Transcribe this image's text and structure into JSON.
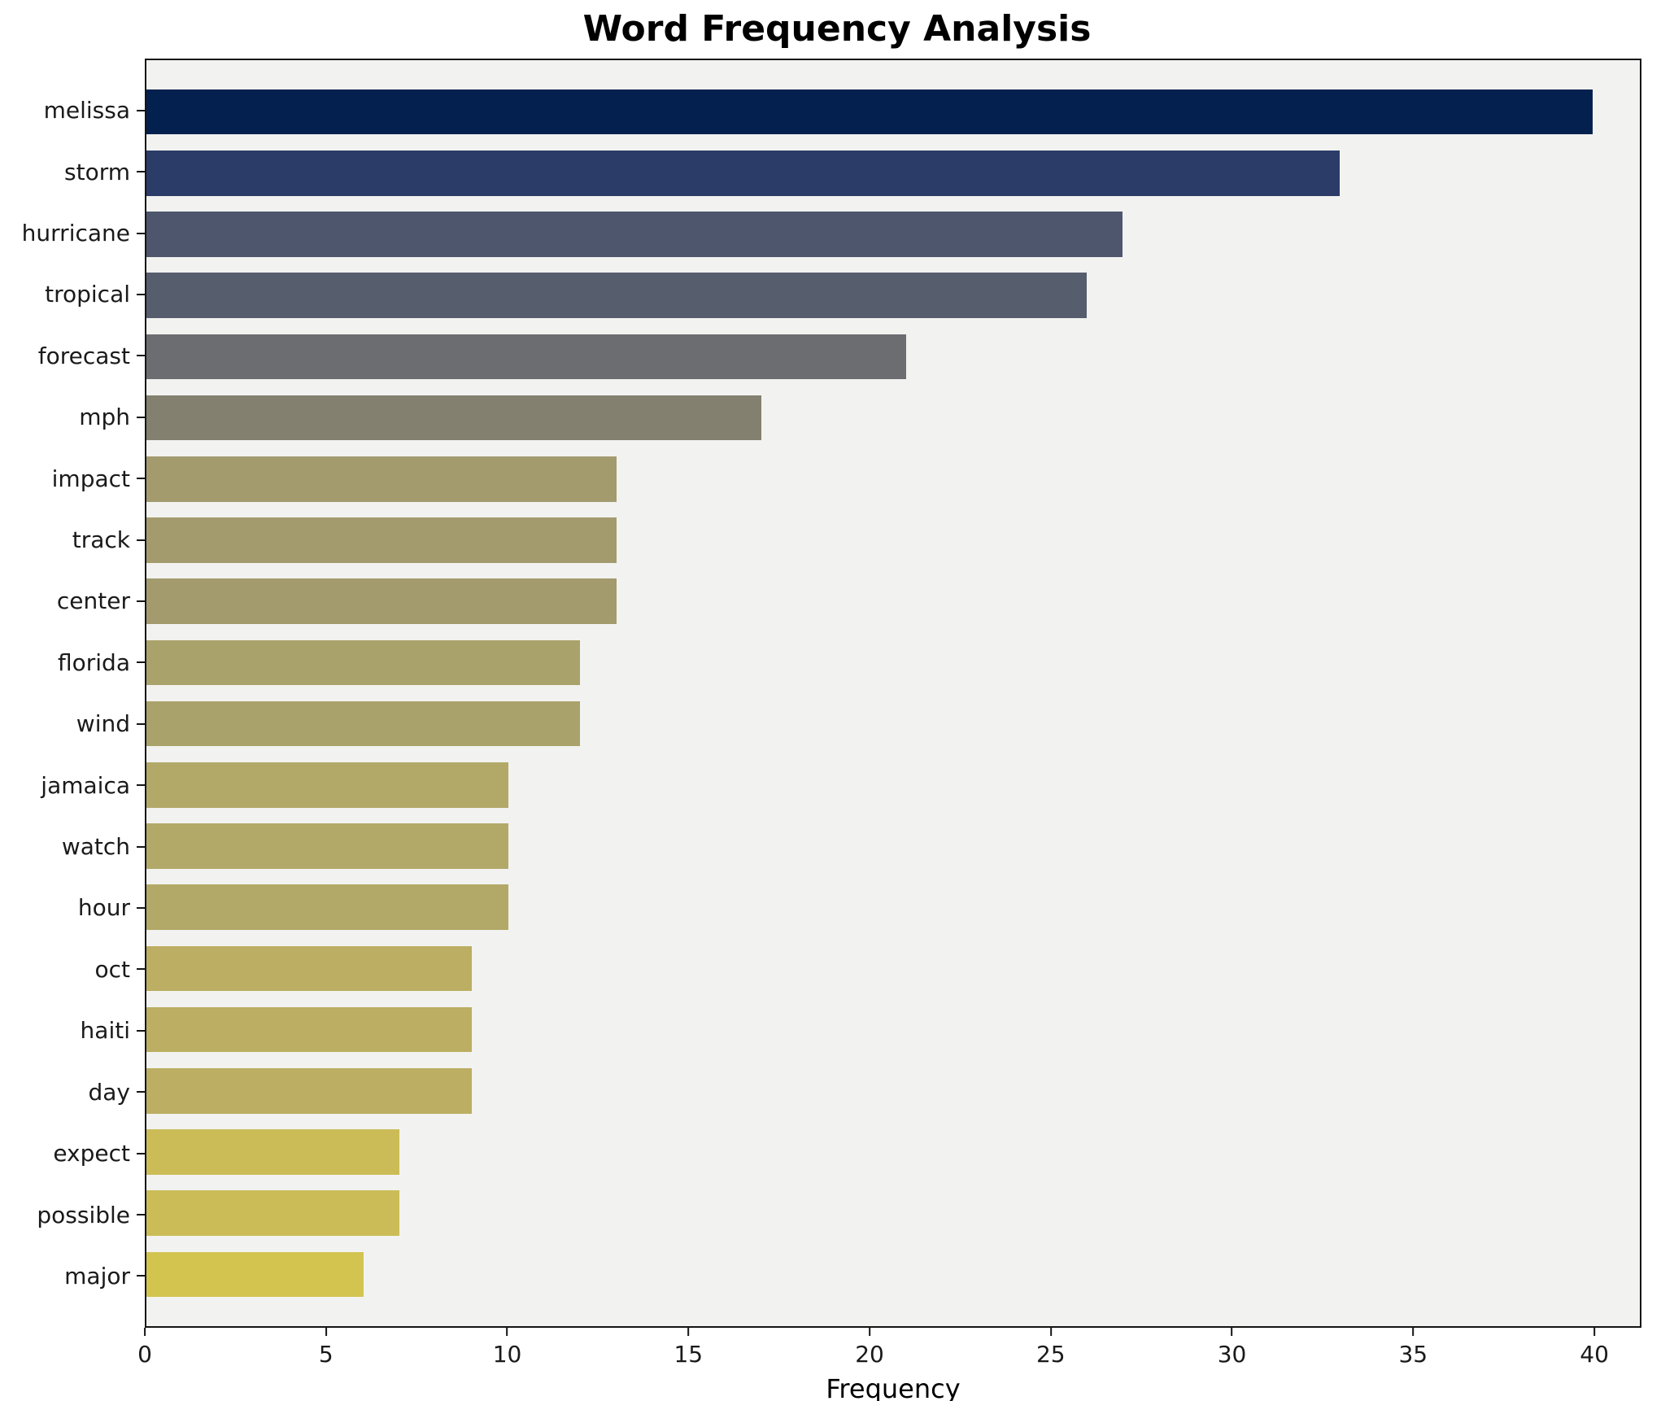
{
  "chart_data": {
    "type": "bar",
    "orientation": "horizontal",
    "title": "Word Frequency Analysis",
    "xlabel": "Frequency",
    "ylabel": "",
    "xlim": [
      0,
      41.3
    ],
    "xticks": [
      0,
      5,
      10,
      15,
      20,
      25,
      30,
      35,
      40
    ],
    "grid": false,
    "legend": "none",
    "plot_bg": "#f2f2f0",
    "categories": [
      "melissa",
      "storm",
      "hurricane",
      "tropical",
      "forecast",
      "mph",
      "impact",
      "track",
      "center",
      "florida",
      "wind",
      "jamaica",
      "watch",
      "hour",
      "oct",
      "haiti",
      "day",
      "expect",
      "possible",
      "major"
    ],
    "values": [
      40,
      33,
      27,
      26,
      21,
      17,
      13,
      13,
      13,
      12,
      12,
      10,
      10,
      10,
      9,
      9,
      9,
      7,
      7,
      6
    ],
    "bar_colors": [
      "#04204e",
      "#2b3c68",
      "#4d566c",
      "#565d6d",
      "#6c6d71",
      "#83806f",
      "#a39b6e",
      "#a39b6e",
      "#a39b6e",
      "#aaa26b",
      "#aaa26b",
      "#b2a968",
      "#b2a968",
      "#b2a968",
      "#bcae62",
      "#bcae62",
      "#bcae62",
      "#cbbc57",
      "#cbbc57",
      "#d3c450"
    ]
  }
}
